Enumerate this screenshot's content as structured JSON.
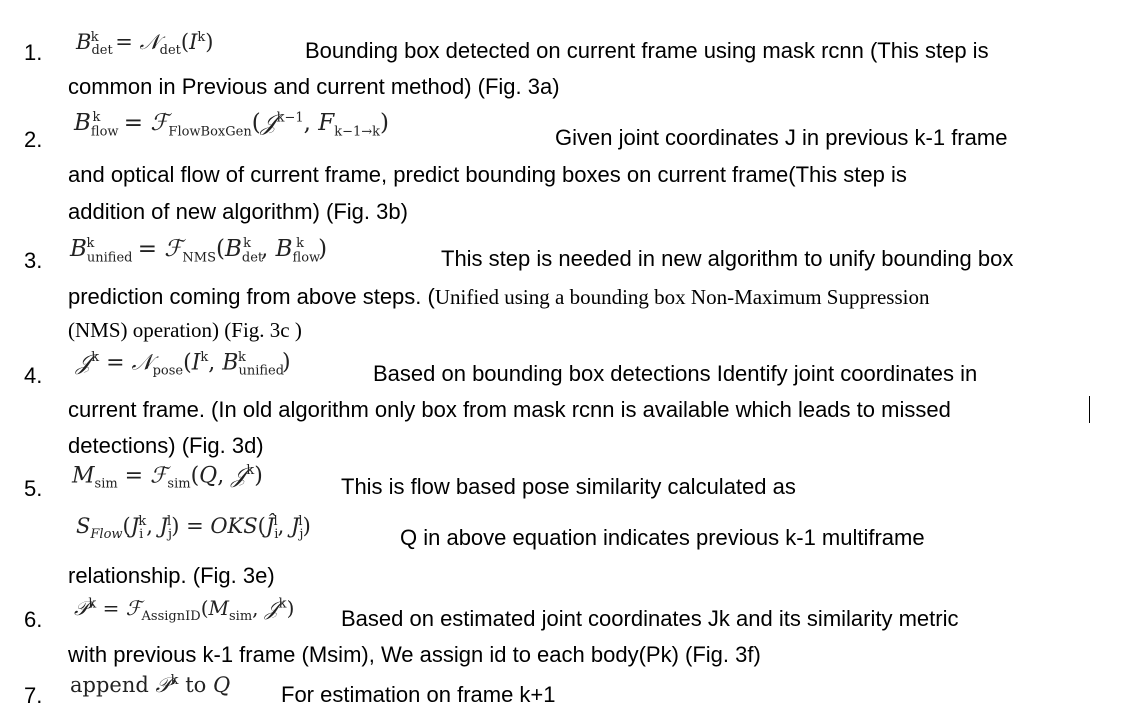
{
  "steps": [
    {
      "number": "1.",
      "formula": "Bᵏdet = 𝒩det(Iᵏ)",
      "line1": "Bounding box detected on current frame using mask rcnn (This step is",
      "line2": "common in Previous and current method) (Fig. 3a)"
    },
    {
      "number": "2.",
      "formula": "Bᵏflow = ℱFlowBoxGen(𝒥ᵏ⁻¹, Fk−1→k)",
      "line1": "Given joint coordinates J in previous k-1 frame",
      "line2": "and optical flow of current frame, predict bounding boxes on current frame(This step is",
      "line3": "addition of new algorithm)  (Fig. 3b)"
    },
    {
      "number": "3.",
      "formula": "Bᵏunified = ℱNMS(Bᵏdet, Bᵏflow)",
      "line1": "This step is needed in new algorithm to unify bounding box",
      "line2a": "prediction coming from above steps. (",
      "line2b": "Unified using a bounding box Non-Maximum Suppression",
      "line3": "(NMS) operation) (Fig. 3c )"
    },
    {
      "number": "4.",
      "formula": "𝒥ᵏ = 𝒩pose(Iᵏ, Bᵏunified)",
      "line1": "Based on bounding box detections Identify joint coordinates in",
      "line2": "current frame. (In old algorithm only box from mask rcnn is available which leads to missed",
      "line3": "detections) (Fig. 3d)"
    },
    {
      "number": "5.",
      "formula": "Msim = ℱsim(Q, 𝒥ᵏ)",
      "line1": "This is flow based pose similarity calculated as",
      "formula2": "SFlow(Jᵏi, Jˡj) = OKS(Ĵˡi, Jˡj)",
      "line2": "Q in above equation indicates previous k-1 multiframe",
      "line3": "relationship. (Fig. 3e)"
    },
    {
      "number": "6.",
      "formula": "𝒫ᵏ = ℱAssignID(Msim, 𝒥ᵏ)",
      "line1": "Based on estimated joint coordinates Jk and its similarity metric",
      "line2": "with previous k-1 frame (Msim), We assign id to each body(Pk) (Fig. 3f)"
    },
    {
      "number": "7.",
      "formula": "append 𝒫ᵏ to Q",
      "line1": "For estimation on frame k+1"
    }
  ]
}
